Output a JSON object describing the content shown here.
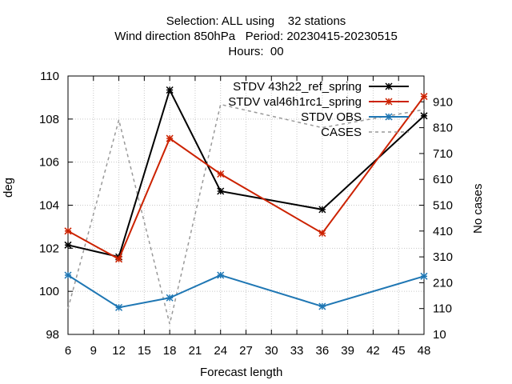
{
  "header": {
    "title_line1": "Selection: ALL using    32 stations",
    "title_line2": "Wind direction 850hPa   Period: 20230415-20230515",
    "title_line3": "Hours:  00"
  },
  "chart_data": {
    "type": "line",
    "xlabel": "Forecast length",
    "ylabel": "deg",
    "y2label": "No cases",
    "xlim": [
      6,
      48
    ],
    "ylim": [
      98,
      110
    ],
    "y2lim": [
      10,
      1010
    ],
    "x_ticks": [
      6,
      9,
      12,
      15,
      18,
      21,
      24,
      27,
      30,
      33,
      36,
      39,
      42,
      45,
      48
    ],
    "y_ticks": [
      98,
      100,
      102,
      104,
      106,
      108,
      110
    ],
    "y2_ticks": [
      10,
      110,
      210,
      310,
      410,
      510,
      610,
      710,
      810,
      910
    ],
    "grid": true,
    "legend_position": "top-right",
    "series": [
      {
        "name": "STDV 43h22_ref_spring",
        "color": "#000000",
        "axis": "y",
        "style": "solid-star",
        "x": [
          6,
          12,
          18,
          24,
          36,
          48
        ],
        "values": [
          102.15,
          101.6,
          109.35,
          104.65,
          103.8,
          108.15
        ]
      },
      {
        "name": "STDV val46h1rc1_spring",
        "color": "#cc2200",
        "axis": "y",
        "style": "solid-star",
        "x": [
          6,
          12,
          18,
          24,
          36,
          48
        ],
        "values": [
          102.8,
          101.5,
          107.1,
          105.45,
          102.7,
          109.05
        ]
      },
      {
        "name": "STDV OBS",
        "color": "#1f77b4",
        "axis": "y",
        "style": "solid-star",
        "x": [
          6,
          12,
          18,
          24,
          36,
          48
        ],
        "values": [
          100.75,
          99.25,
          99.7,
          100.75,
          99.3,
          100.7
        ]
      },
      {
        "name": "CASES",
        "color": "#999999",
        "axis": "y2",
        "style": "dashed",
        "x": [
          6,
          12,
          18,
          24,
          36,
          48
        ],
        "values": [
          110,
          840,
          50,
          900,
          810,
          880
        ]
      }
    ]
  }
}
